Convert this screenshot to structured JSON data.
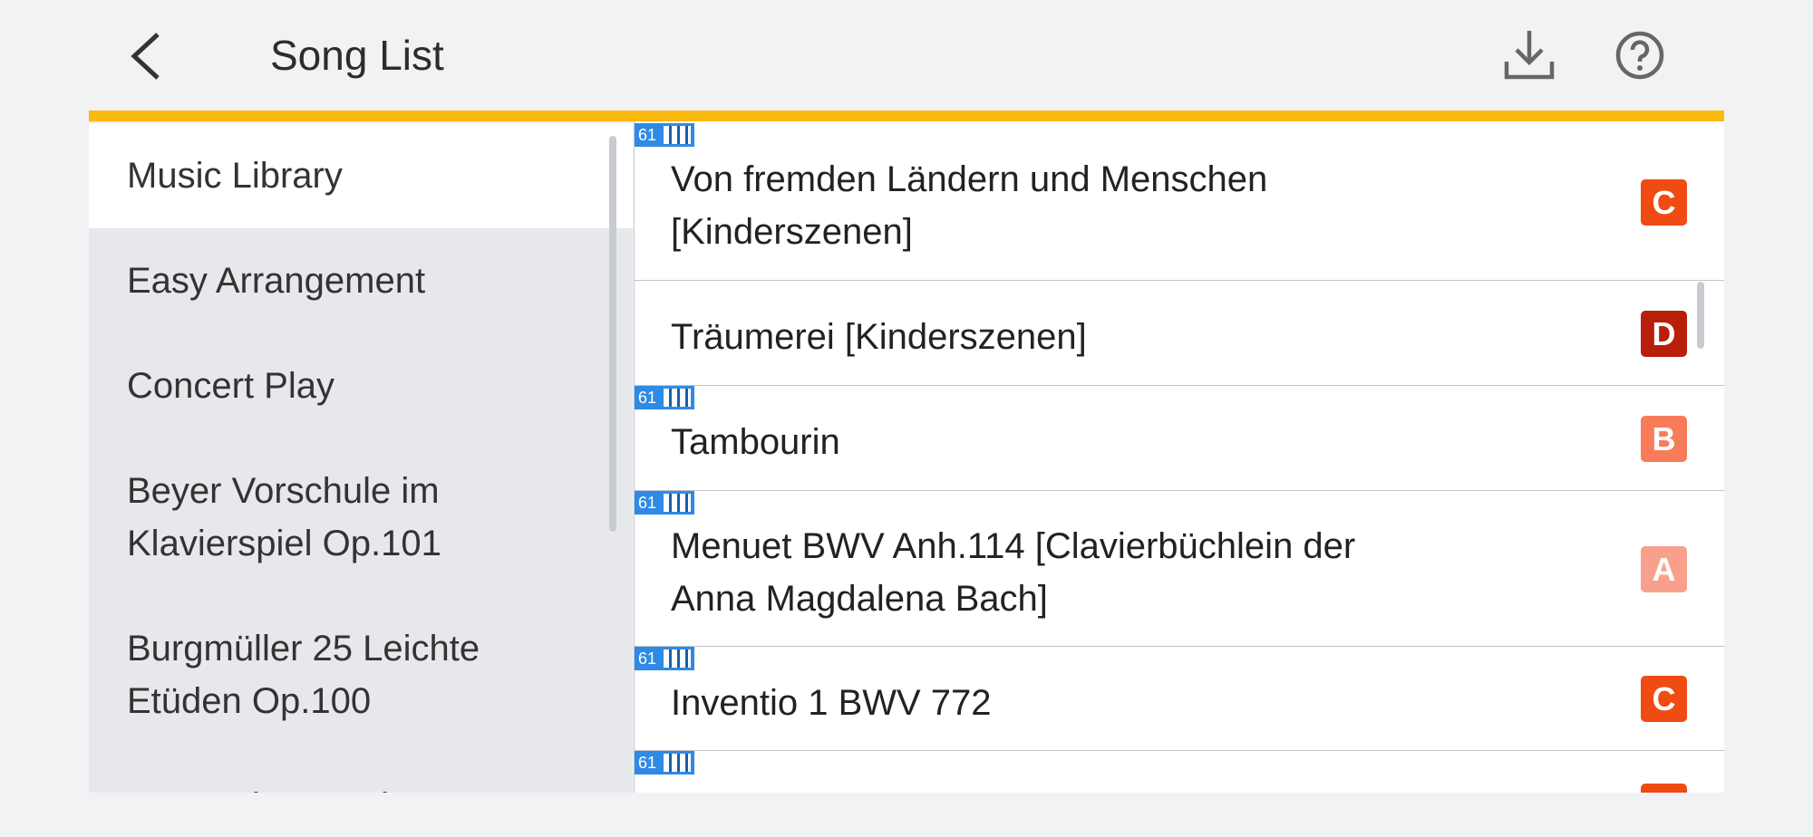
{
  "header": {
    "title": "Song List"
  },
  "menu": {
    "items": [
      {
        "lines": [
          "Music Library"
        ],
        "selected": true
      },
      {
        "lines": [
          "Easy Arrangement"
        ]
      },
      {
        "lines": [
          "Concert Play"
        ]
      },
      {
        "lines": [
          "Beyer Vorschule im",
          "Klavierspiel Op.101"
        ]
      },
      {
        "lines": [
          "Burgmüller 25 Leichte",
          "Etüden Op.100"
        ]
      },
      {
        "lines": [
          "J.S.Bach Inventionen BWV"
        ]
      }
    ]
  },
  "songs": [
    {
      "tag": "61",
      "lines": [
        "Von fremden Ländern und Menschen",
        "[Kinderszenen]"
      ],
      "level": "C"
    },
    {
      "lines": [
        "Träumerei [Kinderszenen]"
      ],
      "level": "D"
    },
    {
      "tag": "61",
      "lines": [
        "Tambourin"
      ],
      "level": "B"
    },
    {
      "tag": "61",
      "lines": [
        "Menuet BWV Anh.114 [Clavierbüchlein der",
        "Anna Magdalena Bach]"
      ],
      "level": "A"
    },
    {
      "tag": "61",
      "lines": [
        "Inventio 1 BWV 772"
      ],
      "level": "C"
    },
    {
      "tag": "61",
      "lines": []
    }
  ]
}
